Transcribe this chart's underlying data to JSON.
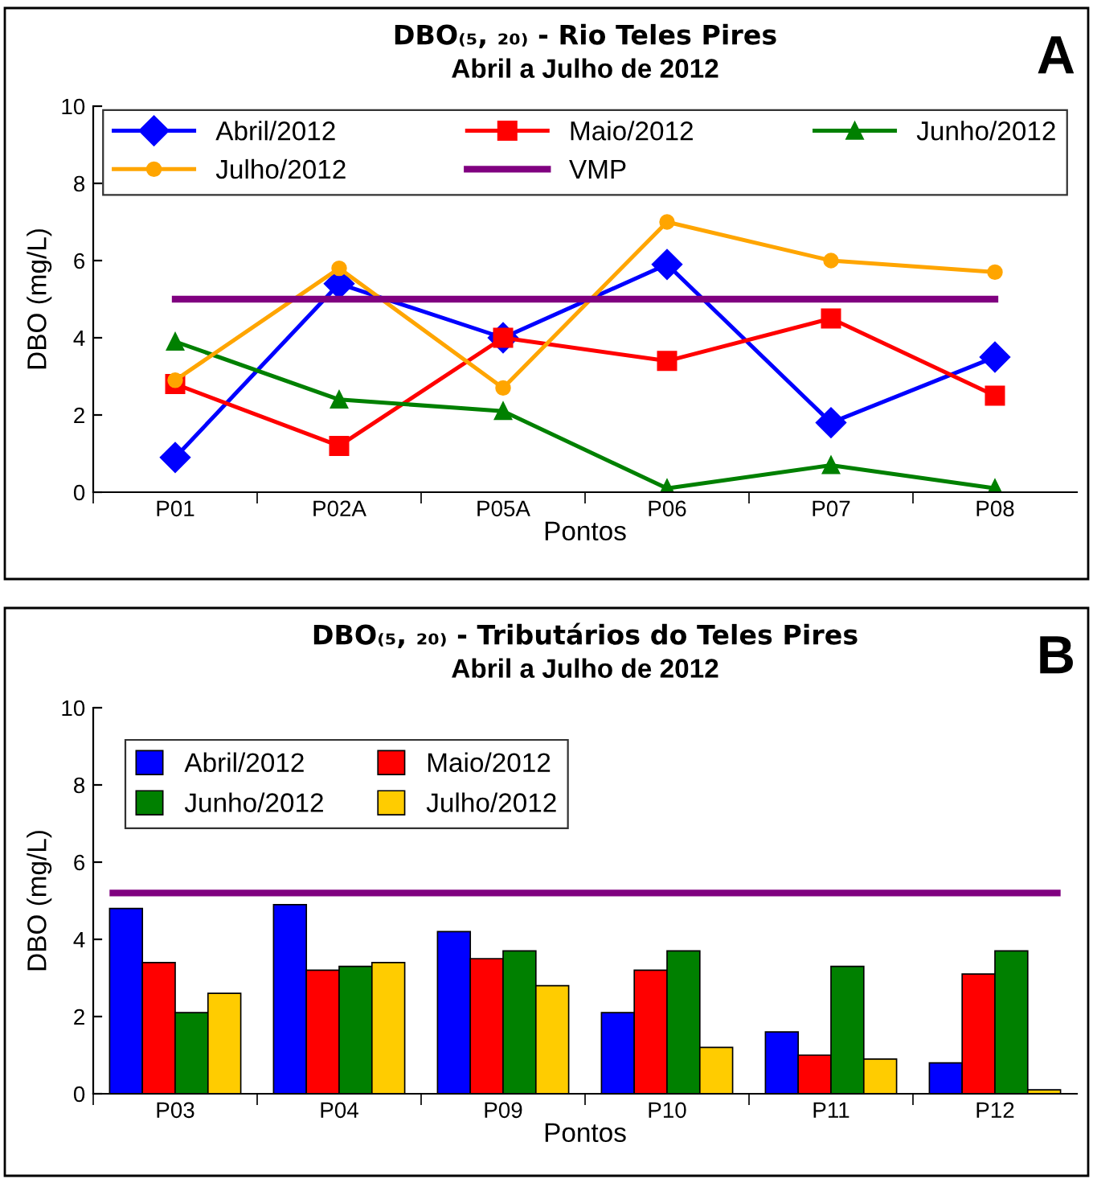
{
  "chart_data": [
    {
      "type": "line",
      "title": "DBO₍₅, ₂₀₎ - Rio Teles Pires",
      "subtitle": "Abril a Julho de 2012",
      "xlabel": "Pontos",
      "ylabel": "DBO (mg/L)",
      "annotations": [
        "A"
      ],
      "categories": [
        "P01",
        "P02A",
        "P05A",
        "P06",
        "P07",
        "P08"
      ],
      "series": [
        {
          "name": "Abril/2012",
          "color": "#0000ff",
          "marker": "diamond",
          "values": [
            0.9,
            5.4,
            4.0,
            5.9,
            1.8,
            3.5
          ]
        },
        {
          "name": "Maio/2012",
          "color": "#ff0000",
          "marker": "square",
          "values": [
            2.8,
            1.2,
            4.0,
            3.4,
            4.5,
            2.5
          ]
        },
        {
          "name": "Junho/2012",
          "color": "#008000",
          "marker": "triangle",
          "values": [
            3.9,
            2.4,
            2.1,
            0.1,
            0.7,
            0.1
          ]
        },
        {
          "name": "Julho/2012",
          "color": "#ffa500",
          "marker": "circle",
          "values": [
            2.9,
            5.8,
            2.7,
            7.0,
            6.0,
            5.7
          ]
        },
        {
          "name": "VMP",
          "color": "#800080",
          "marker": "none",
          "values": [
            5,
            5,
            5,
            5,
            5,
            5
          ]
        }
      ],
      "ylim": [
        0,
        10
      ],
      "yticks": [
        0,
        2,
        4,
        6,
        8,
        10
      ],
      "grid": false,
      "legend": "top",
      "line_style": "solid"
    },
    {
      "type": "bar",
      "title": "DBO₍₅, ₂₀₎ - Tributários do Teles Pires",
      "subtitle": "Abril a Julho de 2012",
      "xlabel": "Pontos",
      "ylabel": "DBO (mg/L)",
      "annotations": [
        "B"
      ],
      "categories": [
        "P03",
        "P04",
        "P09",
        "P10",
        "P11",
        "P12"
      ],
      "series": [
        {
          "name": "Abril/2012",
          "color": "#0000ff",
          "values": [
            4.8,
            4.9,
            4.2,
            2.1,
            1.6,
            0.8
          ]
        },
        {
          "name": "Maio/2012",
          "color": "#ff0000",
          "values": [
            3.4,
            3.2,
            3.5,
            3.2,
            1.0,
            3.1
          ]
        },
        {
          "name": "Junho/2012",
          "color": "#008000",
          "values": [
            2.1,
            3.3,
            3.7,
            3.7,
            3.3,
            3.7
          ]
        },
        {
          "name": "Julho/2012",
          "color": "#ffcc00",
          "values": [
            2.6,
            3.4,
            2.8,
            1.2,
            0.9,
            0.1
          ]
        }
      ],
      "ref_lines": [
        {
          "axis": "y",
          "value": 5.2,
          "color": "#800080"
        }
      ],
      "ylim": [
        0,
        10
      ],
      "yticks": [
        0,
        2,
        4,
        6,
        8,
        10
      ],
      "grid": false,
      "legend": "top left"
    }
  ]
}
